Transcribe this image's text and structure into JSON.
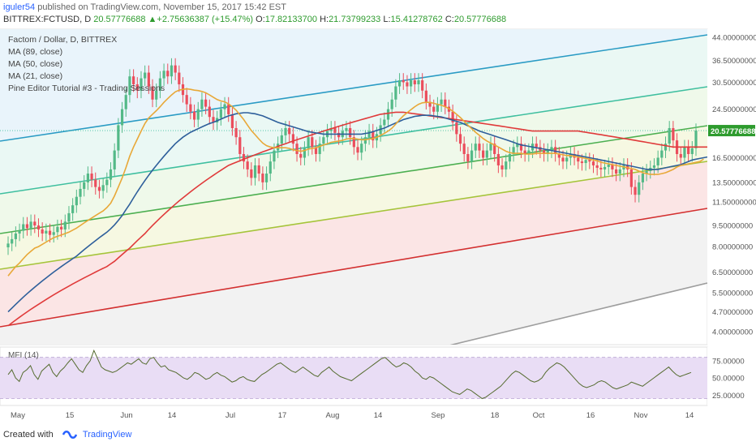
{
  "header": {
    "author": "iguler54",
    "published_text": "published on TradingView.com, November 15, 2017 15:42 EST",
    "symbol": "BITTREX:FCTUSD, D",
    "close_value": "20.57776688",
    "change": "+2.75636387 (+15.47%)",
    "o_label": "O:",
    "o_value": "17.82133700",
    "h_label": "H:",
    "h_value": "21.73799233",
    "l_label": "L:",
    "l_value": "15.41278762",
    "c_label": "C:",
    "c_value": "20.57776688"
  },
  "legend": {
    "title": "Factom / Dollar, D, BITTREX",
    "ma89": "MA (89, close)",
    "ma50": "MA (50, close)",
    "ma21": "MA (21, close)",
    "pine": "Pine Editor Tutorial #3 - Trading Sessions"
  },
  "mfi_label": "MFI (14)",
  "footer": {
    "created_with": "Created with",
    "brand": "TradingView"
  },
  "colors": {
    "up": "#53b987",
    "down": "#eb4d5c",
    "ma89": "#e03a3a",
    "ma50": "#2e5f9b",
    "ma21": "#e8a838",
    "mfi_line": "#556b2f",
    "mfi_band": "#e9ddf5",
    "last_price_bg": "#2e9b2e",
    "channel_red": "#d32f2f",
    "channel_olive": "#a5c43a",
    "channel_green": "#4caf50",
    "channel_teal": "#3fbf9f",
    "channel_blue": "#2a9bc4",
    "channel_gray": "#9e9e9e"
  },
  "chart_data": {
    "type": "candlestick",
    "title": "Factom / Dollar, D, BITTREX",
    "x_ticks": [
      "May",
      "15",
      "Jun",
      "14",
      "Jul",
      "17",
      "Aug",
      "14",
      "Sep",
      "18",
      "Oct",
      "16",
      "Nov",
      "14"
    ],
    "y_ticks": [
      "44.00000000",
      "36.50000000",
      "30.50000000",
      "24.50000000",
      "20.57776688",
      "16.50000000",
      "13.50000000",
      "11.50000000",
      "9.50000000",
      "8.00000000",
      "6.50000000",
      "5.50000000",
      "4.70000000",
      "4.00000000"
    ],
    "last_price": "20.57776688",
    "y_scale": "log",
    "ylim": [
      3.6,
      47
    ],
    "date_range": [
      "2017-04-27",
      "2017-11-15"
    ],
    "closes": [
      8.2,
      8.5,
      8.9,
      9.1,
      9.6,
      9.3,
      9.8,
      9.5,
      9.2,
      8.9,
      9.1,
      8.8,
      9.0,
      9.4,
      9.2,
      9.8,
      10.5,
      11.2,
      12.0,
      12.8,
      13.5,
      14.5,
      13.8,
      13.0,
      12.6,
      13.2,
      13.8,
      15.0,
      17.5,
      21.5,
      24.5,
      27.5,
      32.0,
      30.0,
      28.5,
      31.5,
      33.0,
      29.5,
      26.5,
      28.5,
      31.5,
      33.5,
      32.0,
      35.0,
      33.0,
      30.0,
      27.5,
      25.5,
      24.0,
      22.5,
      24.5,
      26.5,
      25.0,
      23.0,
      22.0,
      22.8,
      24.5,
      25.5,
      23.5,
      21.0,
      19.5,
      17.0,
      16.0,
      15.0,
      14.0,
      15.5,
      14.5,
      13.5,
      14.5,
      16.0,
      17.5,
      18.5,
      19.8,
      21.0,
      20.0,
      18.5,
      17.0,
      16.5,
      17.8,
      19.5,
      18.0,
      17.0,
      18.5,
      19.5,
      20.5,
      21.0,
      20.2,
      19.5,
      20.5,
      21.0,
      19.5,
      18.0,
      17.2,
      18.5,
      19.5,
      20.5,
      19.0,
      20.0,
      21.5,
      22.5,
      24.5,
      26.5,
      29.5,
      31.0,
      30.5,
      29.5,
      31.0,
      30.0,
      31.0,
      28.5,
      26.0,
      25.0,
      24.0,
      25.5,
      26.5,
      25.0,
      24.0,
      22.0,
      20.0,
      18.5,
      17.0,
      16.0,
      17.5,
      18.5,
      17.5,
      16.5,
      17.5,
      18.5,
      17.0,
      15.5,
      15.0,
      16.0,
      17.0,
      18.0,
      18.5,
      17.5,
      17.0,
      17.5,
      18.5,
      18.0,
      17.5,
      17.0,
      17.5,
      18.0,
      17.0,
      16.5,
      16.0,
      16.5,
      17.0,
      16.5,
      16.0,
      15.8,
      16.2,
      16.0,
      15.5,
      15.2,
      15.0,
      15.3,
      15.6,
      15.0,
      14.5,
      15.0,
      15.5,
      15.0,
      13.0,
      12.2,
      13.5,
      14.5,
      14.8,
      15.2,
      15.5,
      16.5,
      17.5,
      18.5,
      21.0,
      19.0,
      17.0,
      16.5,
      18.0,
      17.0,
      17.82,
      20.58
    ],
    "ma21": [
      6.3,
      6.55,
      6.8,
      7.0,
      7.25,
      7.5,
      7.7,
      7.9,
      8.0,
      8.15,
      8.3,
      8.45,
      8.6,
      8.7,
      8.8,
      8.9,
      9.0,
      9.15,
      9.3,
      9.5,
      9.7,
      9.9,
      10.1,
      10.3,
      10.5,
      10.7,
      11.0,
      11.4,
      12.1,
      13.0,
      14.0,
      15.2,
      16.7,
      18.0,
      19.2,
      20.5,
      21.8,
      22.8,
      23.5,
      24.2,
      25.0,
      25.9,
      26.7,
      27.5,
      28.2,
      28.6,
      28.8,
      28.9,
      28.8,
      28.6,
      28.5,
      28.3,
      28.0,
      27.5,
      27.0,
      26.5,
      26.2,
      26.0,
      25.6,
      25.0,
      24.3,
      23.4,
      22.5,
      21.5,
      20.6,
      19.9,
      19.2,
      18.6,
      18.2,
      18.0,
      17.9,
      17.9,
      17.9,
      17.9,
      17.8,
      17.6,
      17.5,
      17.4,
      17.5,
      17.7,
      17.8,
      17.9,
      18.1,
      18.3,
      18.5,
      18.7,
      18.8,
      18.9,
      19.0,
      19.2,
      19.3,
      19.3,
      19.2,
      19.1,
      19.1,
      19.2,
      19.3,
      19.5,
      19.8,
      20.1,
      20.5,
      21.0,
      21.7,
      22.5,
      23.2,
      23.8,
      24.4,
      25.0,
      25.5,
      25.8,
      25.9,
      25.9,
      25.7,
      25.5,
      25.3,
      25.0,
      24.6,
      24.1,
      23.5,
      22.9,
      22.2,
      21.5,
      20.9,
      20.3,
      19.8,
      19.3,
      18.9,
      18.6,
      18.3,
      18.0,
      17.7,
      17.4,
      17.2,
      17.1,
      17.1,
      17.1,
      17.0,
      17.0,
      17.0,
      17.1,
      17.1,
      17.1,
      17.1,
      17.1,
      17.1,
      17.0,
      16.9,
      16.8,
      16.8,
      16.7,
      16.6,
      16.5,
      16.4,
      16.3,
      16.2,
      16.1,
      15.9,
      15.8,
      15.7,
      15.6,
      15.5,
      15.4,
      15.3,
      15.2,
      15.1,
      15.0,
      14.8,
      14.6,
      14.5,
      14.4,
      14.4,
      14.4,
      14.5,
      14.6,
      14.8,
      15.0,
      15.3,
      15.5,
      15.6,
      15.7,
      15.8,
      15.9,
      16.0,
      16.3
    ],
    "ma50": [
      4.7,
      4.85,
      5.0,
      5.15,
      5.3,
      5.45,
      5.6,
      5.75,
      5.9,
      6.05,
      6.2,
      6.35,
      6.5,
      6.65,
      6.8,
      6.95,
      7.1,
      7.25,
      7.4,
      7.6,
      7.8,
      8.0,
      8.2,
      8.4,
      8.6,
      8.8,
      9.0,
      9.25,
      9.55,
      9.9,
      10.3,
      10.8,
      11.3,
      11.9,
      12.5,
      13.1,
      13.7,
      14.3,
      14.9,
      15.5,
      16.1,
      16.7,
      17.3,
      17.9,
      18.5,
      19.0,
      19.5,
      19.9,
      20.3,
      20.6,
      20.9,
      21.2,
      21.5,
      21.8,
      22.0,
      22.3,
      22.6,
      22.9,
      23.2,
      23.4,
      23.6,
      23.7,
      23.8,
      23.8,
      23.7,
      23.6,
      23.4,
      23.2,
      22.9,
      22.6,
      22.3,
      22.0,
      21.8,
      21.6,
      21.4,
      21.2,
      21.0,
      20.8,
      20.6,
      20.4,
      20.3,
      20.2,
      20.1,
      20.0,
      20.0,
      20.0,
      20.0,
      20.0,
      20.0,
      20.0,
      20.0,
      20.0,
      20.0,
      20.0,
      20.1,
      20.2,
      20.4,
      20.6,
      20.8,
      21.0,
      21.3,
      21.6,
      21.9,
      22.2,
      22.5,
      22.7,
      22.9,
      23.1,
      23.2,
      23.3,
      23.3,
      23.3,
      23.2,
      23.1,
      23.0,
      22.8,
      22.6,
      22.4,
      22.2,
      22.0,
      21.7,
      21.4,
      21.1,
      20.8,
      20.5,
      20.3,
      20.1,
      19.9,
      19.7,
      19.5,
      19.3,
      19.1,
      18.9,
      18.7,
      18.5,
      18.3,
      18.2,
      18.1,
      18.0,
      17.9,
      17.8,
      17.7,
      17.6,
      17.5,
      17.4,
      17.3,
      17.2,
      17.1,
      17.0,
      16.9,
      16.8,
      16.7,
      16.6,
      16.5,
      16.4,
      16.3,
      16.2,
      16.1,
      16.0,
      15.9,
      15.8,
      15.7,
      15.6,
      15.5,
      15.4,
      15.3,
      15.2,
      15.1,
      15.0,
      15.0,
      15.0,
      15.0,
      15.1,
      15.2,
      15.3,
      15.4,
      15.5,
      15.6,
      15.8,
      16.0,
      16.2,
      16.3,
      16.4,
      16.5,
      16.6,
      16.8
    ],
    "ma89": [
      4.2,
      4.3,
      4.4,
      4.5,
      4.6,
      4.7,
      4.8,
      4.9,
      5.0,
      5.1,
      5.2,
      5.3,
      5.4,
      5.5,
      5.6,
      5.7,
      5.8,
      5.9,
      6.0,
      6.1,
      6.2,
      6.3,
      6.4,
      6.5,
      6.6,
      6.7,
      6.8,
      6.95,
      7.1,
      7.3,
      7.5,
      7.7,
      7.9,
      8.15,
      8.4,
      8.65,
      8.9,
      9.2,
      9.5,
      9.8,
      10.1,
      10.4,
      10.7,
      11.0,
      11.3,
      11.6,
      11.9,
      12.2,
      12.5,
      12.8,
      13.1,
      13.4,
      13.7,
      14.0,
      14.3,
      14.6,
      14.9,
      15.2,
      15.5,
      15.7,
      15.9,
      16.1,
      16.3,
      16.5,
      16.7,
      16.9,
      17.1,
      17.3,
      17.5,
      17.7,
      17.9,
      18.1,
      18.3,
      18.5,
      18.7,
      18.9,
      19.1,
      19.3,
      19.5,
      19.7,
      19.9,
      20.1,
      20.3,
      20.5,
      20.7,
      20.9,
      21.1,
      21.3,
      21.5,
      21.7,
      21.9,
      22.1,
      22.3,
      22.5,
      22.7,
      22.9,
      23.1,
      23.3,
      23.5,
      23.6,
      23.7,
      23.8,
      23.9,
      23.9,
      23.9,
      23.8,
      23.7,
      23.6,
      23.5,
      23.4,
      23.3,
      23.2,
      23.1,
      23.0,
      22.9,
      22.8,
      22.7,
      22.6,
      22.5,
      22.4,
      22.3,
      22.2,
      22.1,
      22.0,
      21.9,
      21.8,
      21.7,
      21.6,
      21.5,
      21.4,
      21.3,
      21.2,
      21.1,
      21.0,
      20.9,
      20.8,
      20.7,
      20.6,
      20.5,
      20.5,
      20.5,
      20.5,
      20.5,
      20.5,
      20.5,
      20.5,
      20.5,
      20.5,
      20.5,
      20.5,
      20.5,
      20.4,
      20.3,
      20.2,
      20.1,
      20.0,
      19.9,
      19.8,
      19.7,
      19.6,
      19.5,
      19.4,
      19.3,
      19.2,
      19.1,
      19.0,
      18.9,
      18.8,
      18.7,
      18.6,
      18.5,
      18.4,
      18.3,
      18.2,
      18.1,
      18.0,
      18.0,
      18.0,
      18.0,
      18.0,
      18.0,
      18.0,
      18.0,
      18.0,
      18.0,
      18.0
    ],
    "mfi": {
      "label": "MFI (14)",
      "ticks": [
        "75.00000",
        "50.00000",
        "25.00000"
      ],
      "ylim": [
        10,
        95
      ],
      "band": [
        20,
        80
      ],
      "values": [
        55,
        62,
        50,
        45,
        58,
        62,
        68,
        55,
        48,
        60,
        65,
        70,
        58,
        52,
        60,
        65,
        72,
        78,
        70,
        62,
        58,
        68,
        75,
        90,
        78,
        66,
        62,
        60,
        58,
        60,
        64,
        68,
        72,
        70,
        74,
        78,
        72,
        70,
        78,
        80,
        72,
        66,
        68,
        62,
        60,
        58,
        54,
        50,
        48,
        52,
        58,
        56,
        52,
        48,
        50,
        55,
        58,
        54,
        52,
        48,
        44,
        46,
        50,
        52,
        48,
        46,
        45,
        50,
        55,
        58,
        62,
        66,
        70,
        72,
        68,
        64,
        60,
        58,
        62,
        66,
        62,
        58,
        54,
        52,
        58,
        62,
        66,
        60,
        56,
        52,
        50,
        48,
        46,
        50,
        54,
        58,
        62,
        66,
        70,
        74,
        78,
        80,
        75,
        70,
        66,
        68,
        72,
        70,
        66,
        60,
        56,
        50,
        48,
        52,
        50,
        46,
        42,
        38,
        34,
        30,
        28,
        26,
        30,
        34,
        32,
        28,
        24,
        20,
        22,
        26,
        30,
        34,
        38,
        44,
        50,
        56,
        60,
        58,
        54,
        50,
        46,
        44,
        46,
        50,
        58,
        64,
        68,
        72,
        70,
        66,
        60,
        54,
        48,
        42,
        38,
        36,
        38,
        40,
        44,
        46,
        44,
        40,
        36,
        34,
        36,
        38,
        40,
        44,
        42,
        40,
        38,
        42,
        46,
        50,
        54,
        58,
        62,
        66,
        60,
        55,
        52,
        54,
        56,
        58
      ]
    }
  }
}
